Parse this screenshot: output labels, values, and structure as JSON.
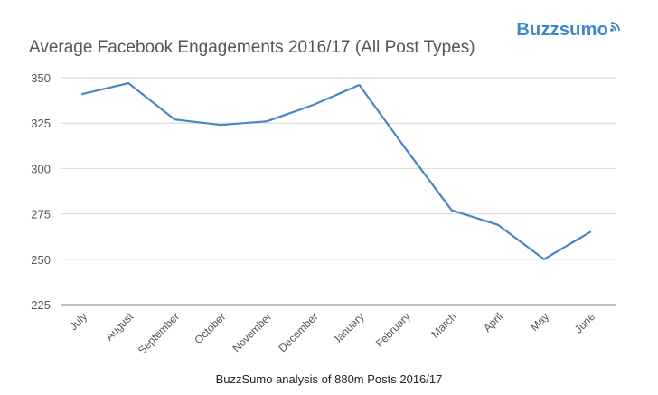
{
  "brand": {
    "name": "Buzzsumo",
    "color": "#3d87c8",
    "icon": "wifi-signal-icon"
  },
  "caption": "BuzzSumo analysis of 880m Posts 2016/17",
  "chart_data": {
    "type": "line",
    "title": "Average Facebook Engagements 2016/17 (All Post Types)",
    "xlabel": "",
    "ylabel": "",
    "categories": [
      "July",
      "August",
      "September",
      "October",
      "November",
      "December",
      "January",
      "February",
      "March",
      "April",
      "May",
      "June"
    ],
    "series": [
      {
        "values": [
          341,
          347,
          327,
          324,
          326,
          335,
          346,
          311,
          277,
          269,
          250,
          265
        ],
        "color": "#4a86c5"
      }
    ],
    "ylim": [
      225,
      350
    ],
    "yticks": [
      225,
      250,
      275,
      300,
      325,
      350
    ],
    "grid": true,
    "legend": "none"
  }
}
